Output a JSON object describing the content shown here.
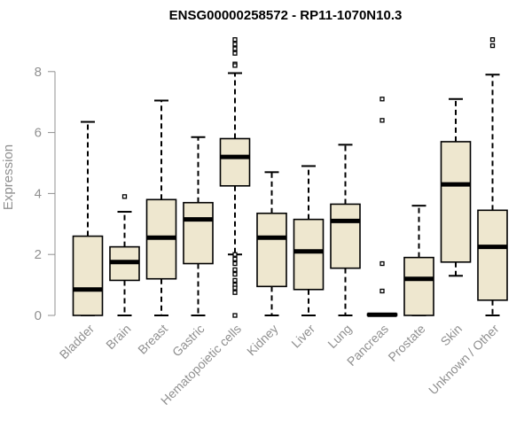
{
  "chart_data": {
    "type": "box",
    "title": "ENSG00000258572 - RP11-1070N10.3",
    "ylabel": "Expression",
    "ylim": [
      0,
      9.2
    ],
    "yticks": [
      0,
      2,
      4,
      6,
      8
    ],
    "colors": {
      "box_fill": "#EEE7CF",
      "box_stroke": "#000000",
      "median": "#000000",
      "axis": "#909090",
      "title": "#000000"
    },
    "categories": [
      "Bladder",
      "Brain",
      "Breast",
      "Gastric",
      "Hematopoietic cells",
      "Kidney",
      "Liver",
      "Lung",
      "Pancreas",
      "Prostate",
      "Skin",
      "Unknown / Other"
    ],
    "boxes": [
      {
        "q1": 0,
        "median": 0.85,
        "q3": 2.6,
        "whisker_low": 0,
        "whisker_high": 6.35,
        "outliers": []
      },
      {
        "q1": 1.15,
        "median": 1.75,
        "q3": 2.25,
        "whisker_low": 0,
        "whisker_high": 3.4,
        "outliers": [
          3.9
        ]
      },
      {
        "q1": 1.2,
        "median": 2.55,
        "q3": 3.8,
        "whisker_low": 0,
        "whisker_high": 7.05,
        "outliers": []
      },
      {
        "q1": 1.7,
        "median": 3.15,
        "q3": 3.7,
        "whisker_low": 0,
        "whisker_high": 5.85,
        "outliers": []
      },
      {
        "q1": 4.25,
        "median": 5.2,
        "q3": 5.8,
        "whisker_low": 2.0,
        "whisker_high": 7.95,
        "outliers": [
          9.05,
          8.9,
          8.75,
          8.6,
          8.25,
          8.2,
          2.0,
          1.85,
          1.7,
          1.5,
          1.35,
          1.15,
          1.0,
          0.9,
          0.75,
          0.0
        ]
      },
      {
        "q1": 0.95,
        "median": 2.55,
        "q3": 3.35,
        "whisker_low": 0,
        "whisker_high": 4.7,
        "outliers": []
      },
      {
        "q1": 0.85,
        "median": 2.1,
        "q3": 3.15,
        "whisker_low": 0,
        "whisker_high": 4.9,
        "outliers": []
      },
      {
        "q1": 1.55,
        "median": 3.1,
        "q3": 3.65,
        "whisker_low": 0,
        "whisker_high": 5.6,
        "outliers": []
      },
      {
        "q1": 0,
        "median": 0.02,
        "q3": 0.05,
        "whisker_low": 0,
        "whisker_high": 0.05,
        "outliers": [
          7.1,
          6.4,
          1.7,
          0.8
        ]
      },
      {
        "q1": 0,
        "median": 1.2,
        "q3": 1.9,
        "whisker_low": 0,
        "whisker_high": 3.6,
        "outliers": []
      },
      {
        "q1": 1.75,
        "median": 4.3,
        "q3": 5.7,
        "whisker_low": 1.3,
        "whisker_high": 7.1,
        "outliers": []
      },
      {
        "q1": 0.5,
        "median": 2.25,
        "q3": 3.45,
        "whisker_low": 0,
        "whisker_high": 7.9,
        "outliers": [
          9.05,
          8.85
        ]
      }
    ]
  }
}
